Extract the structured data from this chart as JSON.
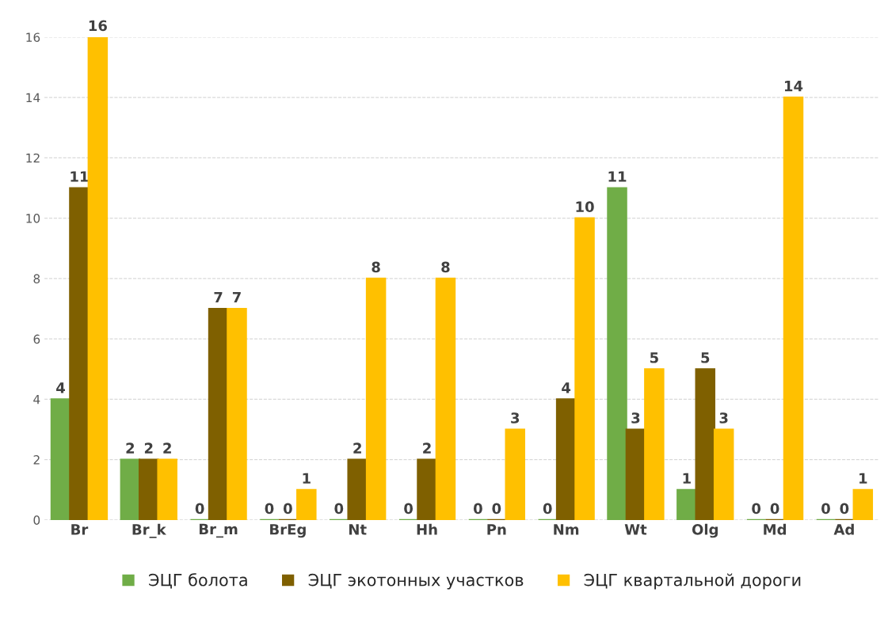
{
  "chart_data": {
    "type": "bar",
    "categories": [
      "Br",
      "Br_k",
      "Br_m",
      "BrEg",
      "Nt",
      "Hh",
      "Pn",
      "Nm",
      "Wt",
      "Olg",
      "Md",
      "Ad"
    ],
    "series": [
      {
        "name": "ЭЦГ болота",
        "color": "#70ad47",
        "values": [
          4,
          2,
          0,
          0,
          0,
          0,
          0,
          0,
          11,
          1,
          0,
          0
        ]
      },
      {
        "name": "ЭЦГ экотонных участков",
        "color": "#7f6000",
        "values": [
          11,
          2,
          7,
          0,
          2,
          2,
          0,
          4,
          3,
          5,
          0,
          0
        ]
      },
      {
        "name": "ЭЦГ квартальной дороги",
        "color": "#ffc000",
        "values": [
          16,
          2,
          7,
          1,
          8,
          8,
          3,
          10,
          5,
          3,
          14,
          1
        ]
      }
    ],
    "ylim": [
      0,
      16
    ],
    "yticks": [
      0,
      2,
      4,
      6,
      8,
      10,
      12,
      14,
      16
    ],
    "grid": "y",
    "legend": "bottom",
    "data_labels": true
  }
}
